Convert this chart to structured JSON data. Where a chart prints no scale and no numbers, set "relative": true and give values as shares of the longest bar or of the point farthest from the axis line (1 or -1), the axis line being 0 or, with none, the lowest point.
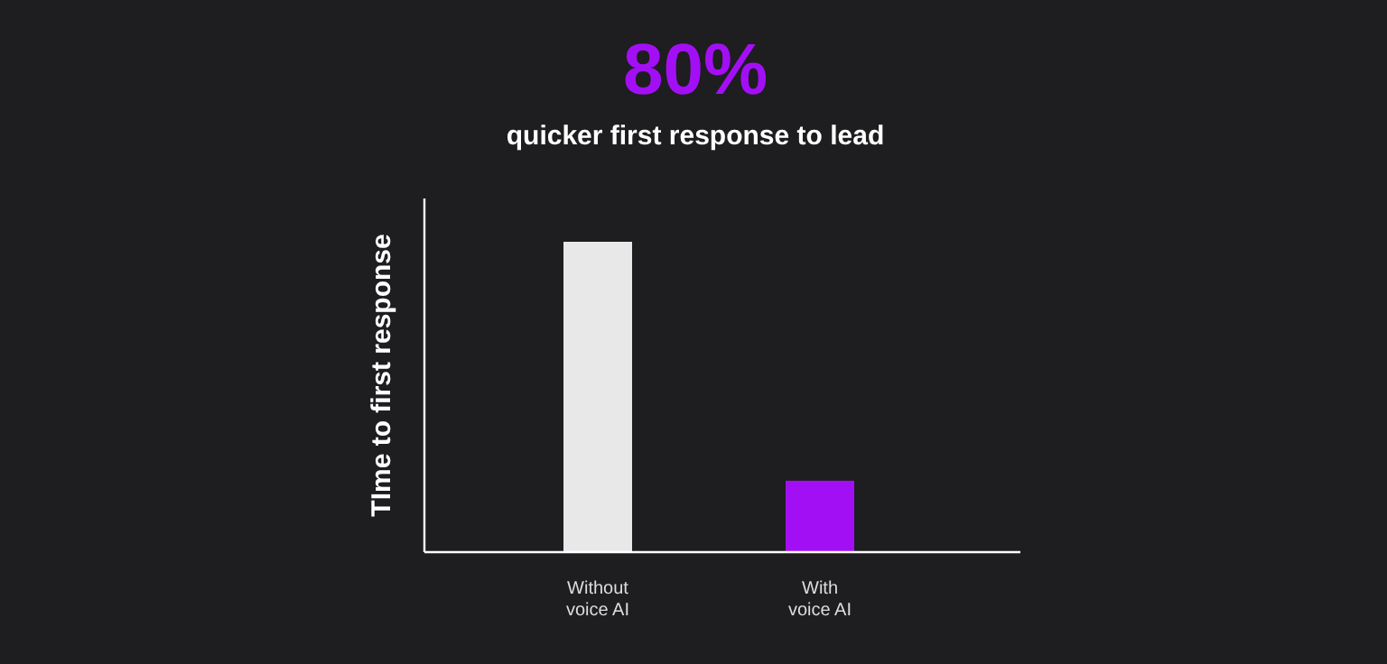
{
  "chart_data": {
    "type": "bar",
    "title": "80%",
    "subtitle": "quicker first response to lead",
    "ylabel": "TIme to first response",
    "categories": [
      "Without\nvoice AI",
      "With\nvoice AI"
    ],
    "values": [
      1,
      0.23
    ],
    "colors": [
      "#e8e8e8",
      "#a30ff5"
    ],
    "relative": true
  }
}
